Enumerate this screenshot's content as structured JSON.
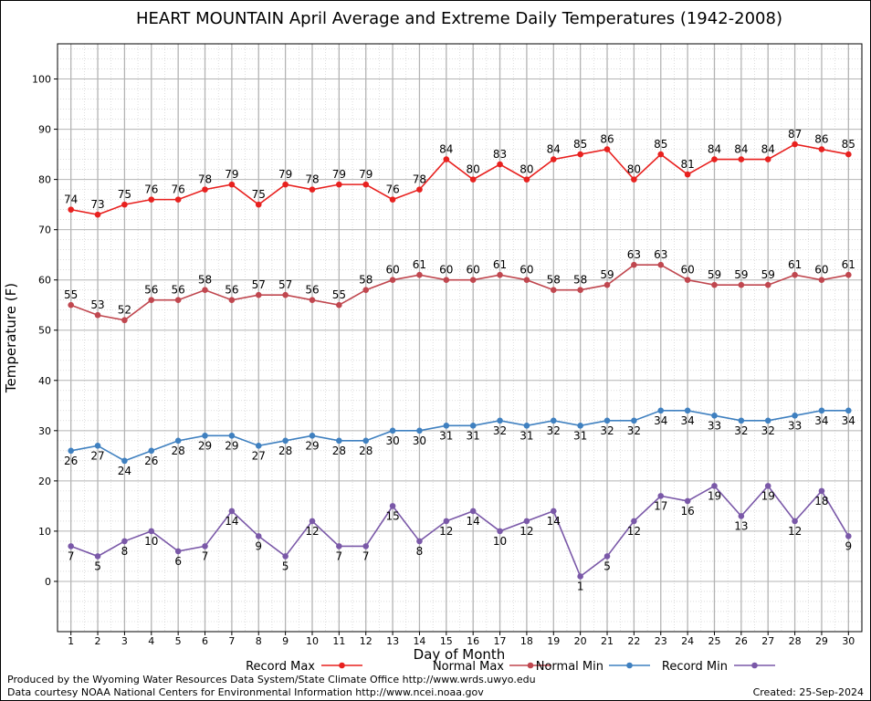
{
  "chart_data": {
    "type": "line",
    "title": "HEART MOUNTAIN April Average and Extreme Daily Temperatures (1942-2008)",
    "xlabel": "Day of Month",
    "ylabel": "Temperature (F)",
    "x": [
      1,
      2,
      3,
      4,
      5,
      6,
      7,
      8,
      9,
      10,
      11,
      12,
      13,
      14,
      15,
      16,
      17,
      18,
      19,
      20,
      21,
      22,
      23,
      24,
      25,
      26,
      27,
      28,
      29,
      30
    ],
    "ylim": [
      -10,
      107
    ],
    "yticks": [
      0,
      10,
      20,
      30,
      40,
      50,
      60,
      70,
      80,
      90,
      100
    ],
    "grid": true,
    "legend_position": "bottom",
    "series": [
      {
        "name": "Record Max",
        "color": "#e8211f",
        "label_pos": "above",
        "values": [
          74,
          73,
          75,
          76,
          76,
          78,
          79,
          75,
          79,
          78,
          79,
          79,
          76,
          78,
          84,
          80,
          83,
          80,
          84,
          85,
          86,
          80,
          85,
          81,
          84,
          84,
          84,
          87,
          86,
          85
        ]
      },
      {
        "name": "Normal Max",
        "color": "#c0474f",
        "label_pos": "above",
        "values": [
          55,
          53,
          52,
          56,
          56,
          58,
          56,
          57,
          57,
          56,
          55,
          58,
          60,
          61,
          60,
          60,
          61,
          60,
          58,
          58,
          59,
          63,
          63,
          60,
          59,
          59,
          59,
          61,
          60,
          61
        ]
      },
      {
        "name": "Normal Min",
        "color": "#3f80c0",
        "label_pos": "below",
        "values": [
          26,
          27,
          24,
          26,
          28,
          29,
          29,
          27,
          28,
          29,
          28,
          28,
          30,
          30,
          31,
          31,
          32,
          31,
          32,
          31,
          32,
          32,
          34,
          34,
          33,
          32,
          32,
          33,
          34,
          34
        ]
      },
      {
        "name": "Record Min",
        "color": "#7a58a8",
        "label_pos": "below",
        "values": [
          7,
          5,
          8,
          10,
          6,
          7,
          14,
          9,
          5,
          12,
          7,
          7,
          15,
          8,
          12,
          14,
          10,
          12,
          14,
          1,
          5,
          12,
          17,
          16,
          19,
          13,
          19,
          12,
          18,
          9
        ]
      }
    ]
  },
  "footer": {
    "produced_by": "Produced by the Wyoming Water Resources Data System/State Climate Office http://www.wrds.uwyo.edu",
    "courtesy": "Data courtesy NOAA National Centers for Environmental Information http://www.ncei.noaa.gov",
    "created": "Created:  25-Sep-2024"
  }
}
